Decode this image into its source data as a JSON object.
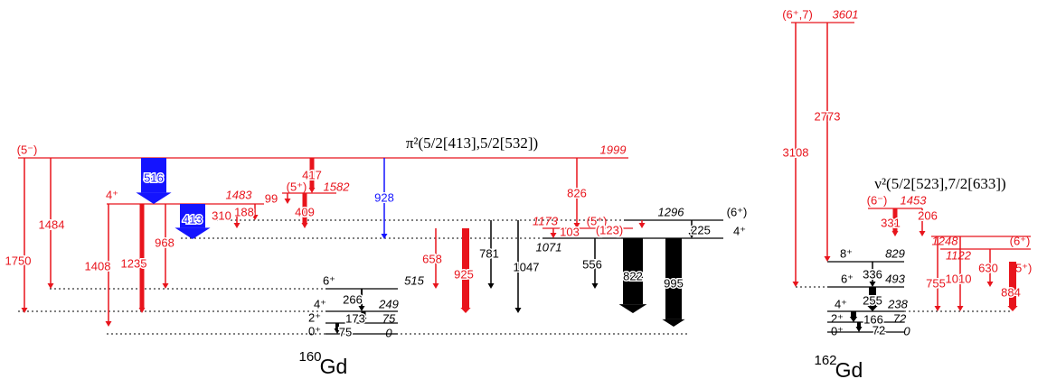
{
  "nuclei": [
    {
      "mass": "160",
      "symbol": "Gd",
      "band": "π²(5/2[413],5/2[532])",
      "levels": [
        {
          "spin": "(5⁻)",
          "energy": 1999
        },
        {
          "spin": "4⁺",
          "energy": 1483
        },
        {
          "spin": "(5⁺)",
          "energy": 1582
        },
        {
          "spin": "(6⁺)",
          "energy": 1296
        },
        {
          "spin": "(5⁺)",
          "energy": 1173
        },
        {
          "spin": "4⁺",
          "energy": 1071
        },
        {
          "spin": "6⁺",
          "energy": 515
        },
        {
          "spin": "4⁺",
          "energy": 249
        },
        {
          "spin": "2⁺",
          "energy": 75
        },
        {
          "spin": "0⁺",
          "energy": 0
        }
      ],
      "transitions": [
        1750,
        1484,
        1408,
        1235,
        968,
        516,
        413,
        417,
        409,
        99,
        188,
        310,
        928,
        826,
        658,
        925,
        781,
        1047,
        556,
        822,
        995,
        103,
        "(123)",
        225,
        266,
        173,
        75
      ]
    },
    {
      "mass": "162",
      "symbol": "Gd",
      "band": "ν²(5/2[523],7/2[633])",
      "levels": [
        {
          "spin": "(6⁺,7)",
          "energy": 3601
        },
        {
          "spin": "(6⁻)",
          "energy": 1453
        },
        {
          "spin": "(6⁺)",
          "energy": 1248
        },
        {
          "spin": "(5⁺)",
          "energy": 1122
        },
        {
          "spin": "8⁺",
          "energy": 829
        },
        {
          "spin": "6⁺",
          "energy": 493
        },
        {
          "spin": "4⁺",
          "energy": 238
        },
        {
          "spin": "2⁺",
          "energy": 72
        },
        {
          "spin": "0⁺",
          "energy": 0
        }
      ],
      "transitions": [
        3108,
        2773,
        331,
        206,
        755,
        1010,
        630,
        884,
        336,
        255,
        166,
        72
      ]
    }
  ]
}
